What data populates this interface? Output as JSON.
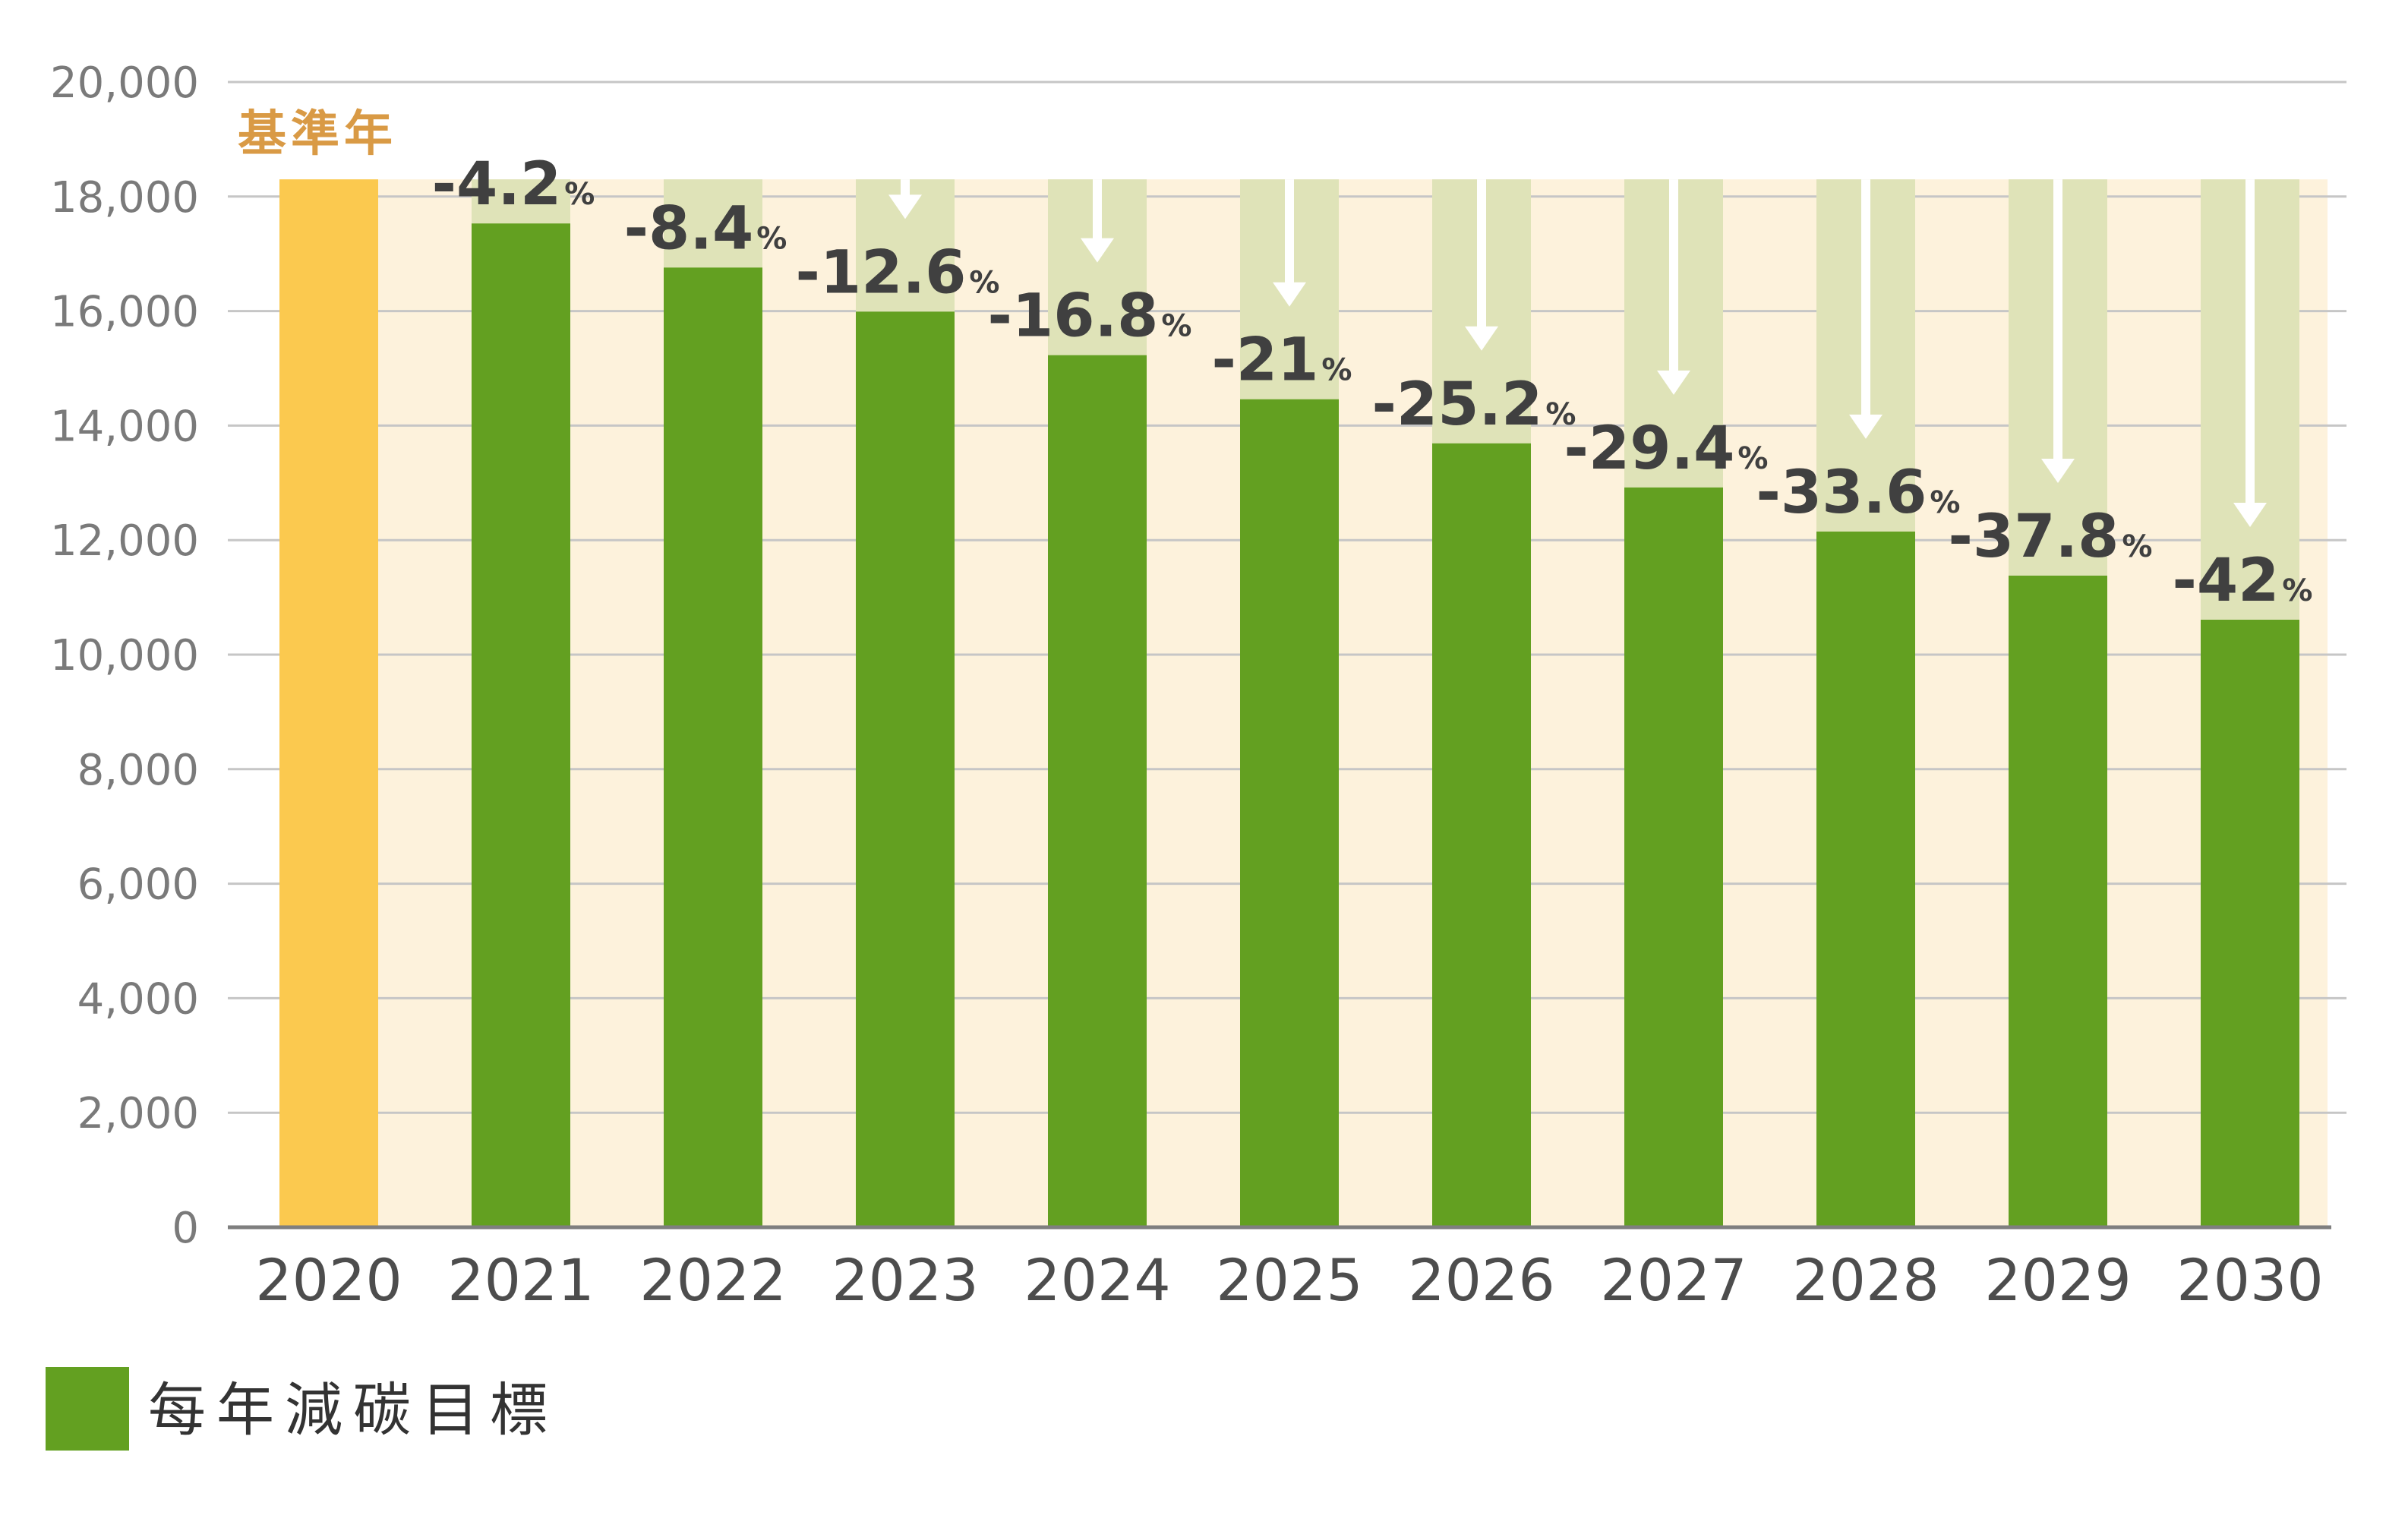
{
  "chart_data": {
    "type": "bar",
    "title": "",
    "xlabel": "",
    "ylabel": "",
    "ylim": [
      0,
      20000
    ],
    "yticks": [
      0,
      2000,
      4000,
      6000,
      8000,
      10000,
      12000,
      14000,
      16000,
      18000,
      20000
    ],
    "ytick_labels": [
      "0",
      "2,000",
      "4,000",
      "6,000",
      "8,000",
      "10,000",
      "12,000",
      "14,000",
      "16,000",
      "18,000",
      "20,000"
    ],
    "grid": true,
    "baseline_value": 18300,
    "base_year_label": "基準年",
    "categories": [
      "2020",
      "2021",
      "2022",
      "2023",
      "2024",
      "2025",
      "2026",
      "2027",
      "2028",
      "2029",
      "2030"
    ],
    "values": [
      18300,
      17530,
      16760,
      15990,
      15230,
      14460,
      13690,
      12920,
      12150,
      11380,
      10610
    ],
    "reduction_labels": [
      "",
      "-4.2",
      "-8.4",
      "-12.6",
      "-16.8",
      "-21",
      "-25.2",
      "-29.4",
      "-33.6",
      "-37.8",
      "-42"
    ],
    "percent_unit": "%",
    "legend": {
      "label": "每年減碳目標",
      "position": "bottom-left"
    },
    "colors": {
      "base_bar": "#fbc94f",
      "target_bar": "#63a021",
      "reduction_band": "#dfe3b8",
      "background_band": "#fdf2dc",
      "arrow": "#ffffff",
      "grid": "#c6c6c6",
      "axis": "#7f7f7f"
    }
  }
}
